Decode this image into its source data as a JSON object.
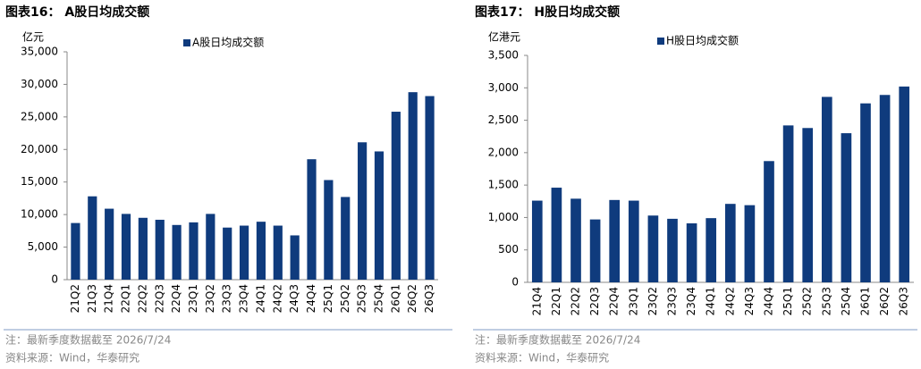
{
  "chart_data": [
    {
      "type": "bar",
      "title": "图表16： A股日均成交额",
      "y_label": "亿元",
      "categories": [
        "21Q2",
        "21Q3",
        "21Q4",
        "22Q1",
        "22Q2",
        "22Q3",
        "22Q4",
        "23Q1",
        "23Q2",
        "23Q3",
        "23Q4",
        "24Q1",
        "24Q2",
        "24Q3",
        "24Q4",
        "25Q1",
        "25Q2",
        "25Q3",
        "25Q4",
        "26Q1",
        "26Q2",
        "26Q3"
      ],
      "series": [
        {
          "name": "A股日均成交额",
          "color": "#0f3b7d",
          "values": [
            8700,
            12800,
            10900,
            10100,
            9500,
            9200,
            8400,
            8800,
            10100,
            8000,
            8300,
            8900,
            8300,
            6800,
            18500,
            15300,
            12700,
            21100,
            19700,
            25800,
            28800,
            28200
          ]
        }
      ],
      "ylim": [
        0,
        35000
      ],
      "yticks": [
        0,
        {
          "value": 5000,
          "label": "5,000"
        },
        {
          "value": 10000,
          "label": "10,000"
        },
        {
          "value": 15000,
          "label": "15,000"
        },
        {
          "value": 20000,
          "label": "20,000"
        },
        {
          "value": 25000,
          "label": "25,000"
        },
        {
          "value": 30000,
          "label": "30,000"
        },
        {
          "value": 35000,
          "label": "35,000"
        }
      ],
      "note": "注：最新季度数据截至 2026/7/24",
      "source": "资料来源：Wind，华泰研究"
    },
    {
      "type": "bar",
      "title": "图表17： H股日均成交额",
      "y_label": "亿港元",
      "categories": [
        "21Q4",
        "22Q1",
        "22Q2",
        "22Q3",
        "22Q4",
        "23Q1",
        "23Q2",
        "23Q3",
        "23Q4",
        "24Q1",
        "24Q2",
        "24Q3",
        "24Q4",
        "25Q1",
        "25Q2",
        "25Q3",
        "25Q4",
        "26Q1",
        "26Q2",
        "26Q3"
      ],
      "series": [
        {
          "name": "H股日均成交额",
          "color": "#0f3b7d",
          "values": [
            1260,
            1460,
            1290,
            970,
            1270,
            1260,
            1030,
            980,
            910,
            990,
            1210,
            1190,
            1870,
            2420,
            2380,
            2860,
            2300,
            2760,
            2890,
            3020
          ]
        }
      ],
      "ylim": [
        0,
        3500
      ],
      "yticks": [
        0,
        500,
        {
          "value": 1000,
          "label": "1,000"
        },
        {
          "value": 1500,
          "label": "1,500"
        },
        {
          "value": 2000,
          "label": "2,000"
        },
        {
          "value": 2500,
          "label": "2,500"
        },
        {
          "value": 3000,
          "label": "3,000"
        },
        {
          "value": 3500,
          "label": "3,500"
        }
      ],
      "note": "注：最新季度数据截至 2026/7/24",
      "source": "资料来源：Wind，华泰研究"
    }
  ]
}
